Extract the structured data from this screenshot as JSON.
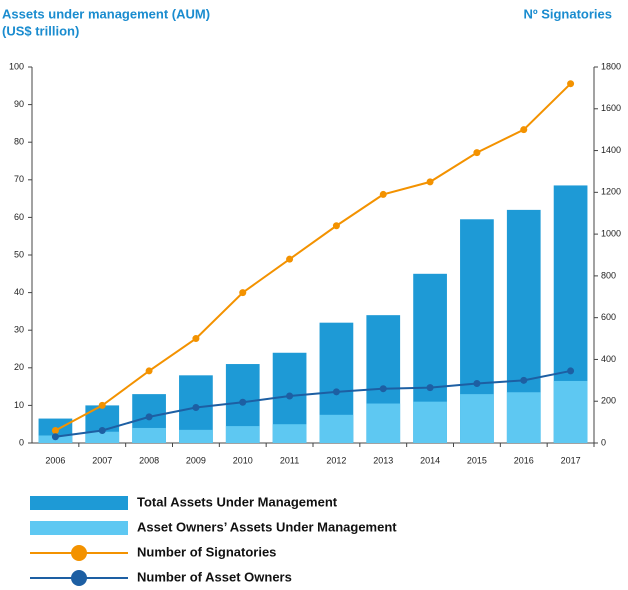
{
  "chart_data": {
    "type": "bar",
    "title": "Assets under management (AUM)",
    "subtitle": "(US$ trillion)",
    "y2_label": "Nº Signatories",
    "categories": [
      "2006",
      "2007",
      "2008",
      "2009",
      "2010",
      "2011",
      "2012",
      "2013",
      "2014",
      "2015",
      "2016",
      "2017"
    ],
    "series": [
      {
        "name": "Total Assets Under Management",
        "type": "bar",
        "color": "#1e9ad6",
        "values": [
          6.5,
          10,
          13,
          18,
          21,
          24,
          32,
          34,
          45,
          59.5,
          62,
          68.5
        ]
      },
      {
        "name": "Asset Owners’ Assets Under Management",
        "type": "bar",
        "color": "#5ec8f2",
        "values": [
          2,
          3,
          4,
          3.5,
          4.5,
          5,
          7.5,
          10.5,
          11,
          13,
          13.5,
          16.5
        ]
      },
      {
        "name": "Number of Signatories",
        "type": "line",
        "axis": "y2",
        "color": "#f39200",
        "values": [
          60,
          180,
          345,
          500,
          720,
          880,
          1040,
          1190,
          1250,
          1390,
          1500,
          1720
        ]
      },
      {
        "name": "Number of Asset Owners",
        "type": "line",
        "axis": "y2",
        "color": "#1d5fa3",
        "values": [
          30,
          60,
          125,
          170,
          195,
          225,
          245,
          260,
          265,
          285,
          300,
          345
        ]
      }
    ],
    "ylim": [
      0,
      100
    ],
    "yticks": [
      0,
      10,
      20,
      30,
      40,
      50,
      60,
      70,
      80,
      90,
      100
    ],
    "y2lim": [
      0,
      1800
    ],
    "y2ticks": [
      0,
      200,
      400,
      600,
      800,
      1000,
      1200,
      1400,
      1600,
      1800
    ]
  }
}
